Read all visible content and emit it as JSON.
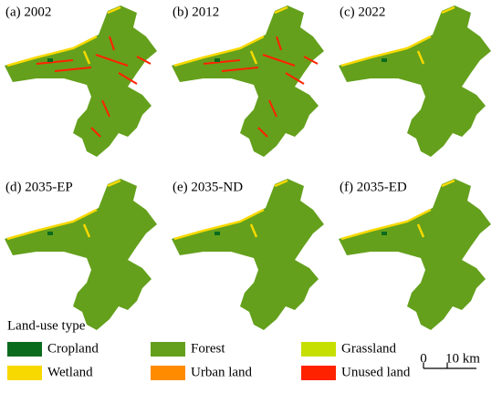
{
  "panels": [
    {
      "label": "(a) 2002"
    },
    {
      "label": "(b) 2012"
    },
    {
      "label": "(c) 2022"
    },
    {
      "label": "(d) 2035-EP"
    },
    {
      "label": "(e) 2035-ND"
    },
    {
      "label": "(f) 2035-ED"
    }
  ],
  "legend": {
    "title": "Land-use type",
    "items": [
      {
        "label": "Cropland",
        "color": "#0b6b1d"
      },
      {
        "label": "Forest",
        "color": "#64a01c"
      },
      {
        "label": "Grassland",
        "color": "#c6df00"
      },
      {
        "label": "Wetland",
        "color": "#f7d900"
      },
      {
        "label": "Urban land",
        "color": "#ff8c00"
      },
      {
        "label": "Unused land",
        "color": "#ff2200"
      }
    ]
  },
  "scale_bar": {
    "start": "0",
    "end": "10 km"
  }
}
